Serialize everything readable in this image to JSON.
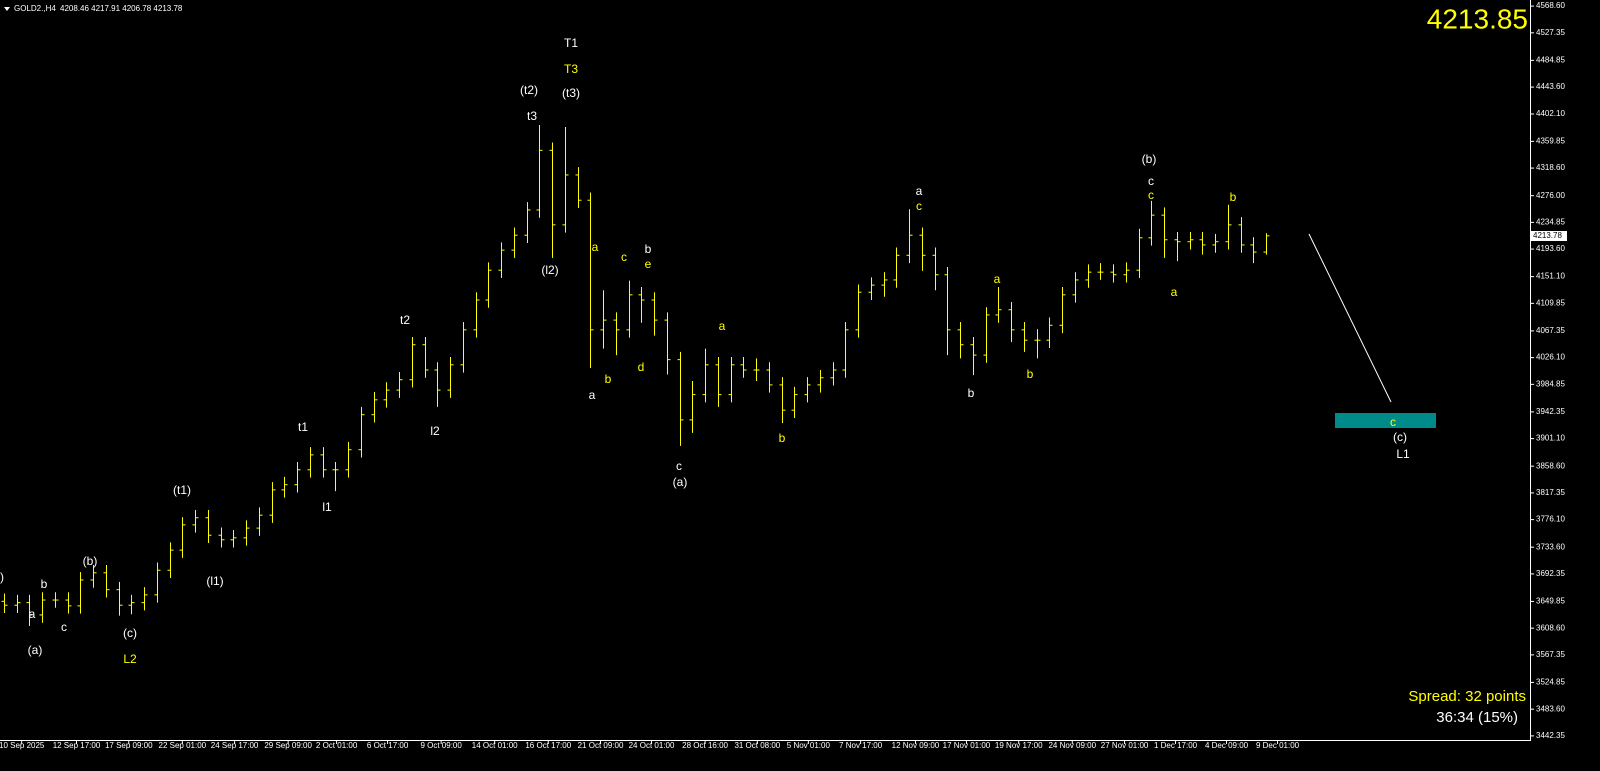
{
  "chart_data": {
    "type": "ohlc",
    "header": [
      "GOLD2.,H4",
      "4208.46 4217.91 4206.78 4213.78"
    ],
    "color": "#ffff00",
    "open": [
      3650,
      3644,
      3648,
      3629,
      3652,
      3652,
      3643,
      3683,
      3694,
      3668,
      3644,
      3648,
      3660,
      3698,
      3729,
      3768,
      3779,
      3752,
      3745,
      3748,
      3763,
      3783,
      3822,
      3830,
      3853,
      3876,
      3853,
      3853,
      3884,
      3938,
      3961,
      3976,
      3992,
      4046,
      4007,
      3976,
      4015,
      4069,
      4115,
      4161,
      4192,
      4215,
      4254,
      4346,
      4231,
      4308,
      4269,
      4069,
      4084,
      4069,
      4123,
      4115,
      4084,
      4023,
      3930,
      3969,
      4015,
      3969,
      4015,
      4007,
      4007,
      3984,
      3945,
      3969,
      3984,
      3995,
      4007,
      4069,
      4127,
      4138,
      4146,
      4184,
      4215,
      4184,
      4154,
      4069,
      4046,
      4030,
      4092,
      4100,
      4069,
      4053,
      4053,
      4076,
      4123,
      4146,
      4158,
      4158,
      4154,
      4161,
      4211,
      4246,
      4208,
      4205,
      4208,
      4200,
      4205,
      4231,
      4200,
      4189
    ],
    "high": [
      3662,
      3660,
      3660,
      3664,
      3664,
      3664,
      3695,
      3706,
      3706,
      3680,
      3660,
      3672,
      3710,
      3741,
      3780,
      3791,
      3791,
      3764,
      3760,
      3775,
      3795,
      3834,
      3842,
      3865,
      3888,
      3888,
      3865,
      3896,
      3950,
      3973,
      3988,
      4004,
      4058,
      4058,
      4019,
      4027,
      4081,
      4127,
      4173,
      4204,
      4227,
      4266,
      4385,
      4358,
      4382,
      4320,
      4281,
      4130,
      4096,
      4145,
      4135,
      4127,
      4096,
      4035,
      3990,
      4040,
      4027,
      4027,
      4027,
      4025,
      4019,
      3996,
      3981,
      3996,
      4007,
      4019,
      4081,
      4139,
      4150,
      4158,
      4196,
      4255,
      4227,
      4196,
      4166,
      4081,
      4058,
      4104,
      4135,
      4112,
      4081,
      4070,
      4088,
      4135,
      4158,
      4170,
      4172,
      4170,
      4173,
      4225,
      4268,
      4258,
      4220,
      4220,
      4220,
      4217,
      4262,
      4243,
      4212,
      4218
    ],
    "low": [
      3632,
      3632,
      3612,
      3617,
      3640,
      3631,
      3631,
      3671,
      3656,
      3628,
      3630,
      3636,
      3648,
      3686,
      3717,
      3756,
      3740,
      3733,
      3733,
      3736,
      3751,
      3771,
      3810,
      3818,
      3841,
      3841,
      3820,
      3841,
      3872,
      3926,
      3949,
      3964,
      3980,
      3995,
      3950,
      3964,
      4003,
      4057,
      4103,
      4149,
      4180,
      4203,
      4242,
      4180,
      4219,
      4257,
      4010,
      4040,
      4030,
      4057,
      4080,
      4060,
      4000,
      3890,
      3910,
      3957,
      3950,
      3957,
      3995,
      3990,
      3972,
      3925,
      3933,
      3957,
      3972,
      3983,
      3995,
      4057,
      4115,
      4120,
      4134,
      4172,
      4160,
      4130,
      4030,
      4025,
      3999,
      4018,
      4080,
      4050,
      4035,
      4025,
      4041,
      4064,
      4111,
      4134,
      4146,
      4142,
      4142,
      4149,
      4199,
      4180,
      4175,
      4193,
      4185,
      4188,
      4193,
      4188,
      4172,
      4185
    ],
    "close": [
      3644,
      3648,
      3629,
      3652,
      3652,
      3643,
      3683,
      3694,
      3668,
      3644,
      3648,
      3660,
      3698,
      3729,
      3768,
      3779,
      3752,
      3745,
      3748,
      3763,
      3783,
      3822,
      3830,
      3853,
      3876,
      3853,
      3853,
      3884,
      3938,
      3961,
      3976,
      3992,
      4046,
      4007,
      3976,
      4015,
      4069,
      4115,
      4161,
      4192,
      4215,
      4254,
      4346,
      4231,
      4308,
      4269,
      4069,
      4084,
      4069,
      4123,
      4115,
      4084,
      4023,
      3930,
      3969,
      4015,
      3969,
      4015,
      4007,
      4007,
      3984,
      3945,
      3969,
      3984,
      3995,
      4007,
      4069,
      4127,
      4138,
      4146,
      4184,
      4215,
      4184,
      4154,
      4069,
      4046,
      4030,
      4092,
      4100,
      4069,
      4053,
      4053,
      4076,
      4123,
      4146,
      4158,
      4158,
      4154,
      4161,
      4211,
      4246,
      4208,
      4205,
      4208,
      4200,
      4205,
      4231,
      4200,
      4189,
      4214
    ],
    "xlim": [
      -0.3,
      119.7
    ],
    "xticks": [
      {
        "value": 1.4,
        "label": "10 Sep 2025"
      },
      {
        "value": 5.7,
        "label": "12 Sep 17:00"
      },
      {
        "value": 9.8,
        "label": "17 Sep 09:00"
      },
      {
        "value": 14.0,
        "label": "22 Sep 01:00"
      },
      {
        "value": 18.1,
        "label": "24 Sep 17:00"
      },
      {
        "value": 22.3,
        "label": "29 Sep 09:00"
      },
      {
        "value": 26.1,
        "label": "2 Oct 01:00"
      },
      {
        "value": 30.1,
        "label": "6 Oct 17:00"
      },
      {
        "value": 34.3,
        "label": "9 Oct 09:00"
      },
      {
        "value": 38.5,
        "label": "14 Oct 01:00"
      },
      {
        "value": 42.7,
        "label": "16 Oct 17:00"
      },
      {
        "value": 46.8,
        "label": "21 Oct 09:00"
      },
      {
        "value": 50.8,
        "label": "24 Oct 01:00"
      },
      {
        "value": 55.0,
        "label": "28 Oct 16:00"
      },
      {
        "value": 59.1,
        "label": "31 Oct 08:00"
      },
      {
        "value": 63.1,
        "label": "5 Nov 01:00"
      },
      {
        "value": 67.2,
        "label": "7 Nov 17:00"
      },
      {
        "value": 71.5,
        "label": "12 Nov 09:00"
      },
      {
        "value": 75.5,
        "label": "17 Nov 01:00"
      },
      {
        "value": 79.6,
        "label": "19 Nov 17:00"
      },
      {
        "value": 83.8,
        "label": "24 Nov 09:00"
      },
      {
        "value": 87.9,
        "label": "27 Nov 01:00"
      },
      {
        "value": 91.9,
        "label": "1 Dec 17:00"
      },
      {
        "value": 95.9,
        "label": "4 Dec 09:00"
      },
      {
        "value": 99.9,
        "label": "9 Dec 01:00"
      }
    ],
    "ylim": [
      3436,
      4578
    ],
    "yticks": [
      {
        "value": 4568.6,
        "label": "4568.60"
      },
      {
        "value": 4527.35,
        "label": "4527.35"
      },
      {
        "value": 4484.85,
        "label": "4484.85"
      },
      {
        "value": 4443.6,
        "label": "4443.60"
      },
      {
        "value": 4402.1,
        "label": "4402.10"
      },
      {
        "value": 4359.85,
        "label": "4359.85"
      },
      {
        "value": 4318.6,
        "label": "4318.60"
      },
      {
        "value": 4276,
        "label": "4276.00"
      },
      {
        "value": 4234.85,
        "label": "4234.85"
      },
      {
        "value": 4193.6,
        "label": "4193.60"
      },
      {
        "value": 4151.1,
        "label": "4151.10"
      },
      {
        "value": 4109.85,
        "label": "4109.85"
      },
      {
        "value": 4067.35,
        "label": "4067.35"
      },
      {
        "value": 4026.1,
        "label": "4026.10"
      },
      {
        "value": 3984.85,
        "label": "3984.85"
      },
      {
        "value": 3942.35,
        "label": "3942.35"
      },
      {
        "value": 3901.1,
        "label": "3901.10"
      },
      {
        "value": 3858.6,
        "label": "3858.60"
      },
      {
        "value": 3817.35,
        "label": "3817.35"
      },
      {
        "value": 3776.1,
        "label": "3776.10"
      },
      {
        "value": 3733.6,
        "label": "3733.60"
      },
      {
        "value": 3692.35,
        "label": "3692.35"
      },
      {
        "value": 3649.85,
        "label": "3649.85"
      },
      {
        "value": 3608.6,
        "label": "3608.60"
      },
      {
        "value": 3567.35,
        "label": "3567.35"
      },
      {
        "value": 3524.85,
        "label": "3524.85"
      },
      {
        "value": 3483.6,
        "label": "3483.60"
      },
      {
        "value": 3442.35,
        "label": "3442.35"
      }
    ],
    "price_marker": {
      "value": 4213.78,
      "label": "4213.78"
    },
    "bid": 4213.85,
    "spread": "Spread: 32 points",
    "timer": "36:34 (15%)",
    "annotations": [
      {
        "text": ")",
        "color": "#ffffff"
      },
      {
        "text": "a",
        "color": "#ffffff"
      },
      {
        "text": "(a)",
        "color": "#ffffff"
      },
      {
        "text": "b",
        "color": "#ffffff"
      },
      {
        "text": "c",
        "color": "#ffffff"
      },
      {
        "text": "(b)",
        "color": "#ffffff"
      },
      {
        "text": "(c)",
        "color": "#ffffff"
      },
      {
        "text": "L2",
        "color": "#ffff00"
      },
      {
        "text": "(t1)",
        "color": "#ffffff"
      },
      {
        "text": "(l1)",
        "color": "#ffffff"
      },
      {
        "text": "t1",
        "color": "#ffffff"
      },
      {
        "text": "l1",
        "color": "#ffffff"
      },
      {
        "text": "t2",
        "color": "#ffffff"
      },
      {
        "text": "l2",
        "color": "#ffffff"
      },
      {
        "text": "(t2)",
        "color": "#ffffff"
      },
      {
        "text": "t3",
        "color": "#ffffff"
      },
      {
        "text": "T1",
        "color": "#ffffff"
      },
      {
        "text": "T3",
        "color": "#ffff00"
      },
      {
        "text": "(t3)",
        "color": "#ffffff"
      },
      {
        "text": "(l2)",
        "color": "#ffffff"
      },
      {
        "text": "a",
        "color": "#ffff00"
      },
      {
        "text": "b",
        "color": "#ffff00"
      },
      {
        "text": "a",
        "color": "#ffffff"
      },
      {
        "text": "c",
        "color": "#ffff00"
      },
      {
        "text": "b",
        "color": "#ffffff"
      },
      {
        "text": "e",
        "color": "#ffff00"
      },
      {
        "text": "d",
        "color": "#ffff00"
      },
      {
        "text": "c",
        "color": "#ffffff"
      },
      {
        "text": "(a)",
        "color": "#ffffff"
      },
      {
        "text": "a",
        "color": "#ffff00"
      },
      {
        "text": "b",
        "color": "#ffff00"
      },
      {
        "text": "a",
        "color": "#ffffff"
      },
      {
        "text": "c",
        "color": "#ffff00"
      },
      {
        "text": "b",
        "color": "#ffffff"
      },
      {
        "text": "a",
        "color": "#ffff00"
      },
      {
        "text": "b",
        "color": "#ffff00"
      },
      {
        "text": "(b)",
        "color": "#ffffff"
      },
      {
        "text": "c",
        "color": "#ffffff"
      },
      {
        "text": "c",
        "color": "#ffff00"
      },
      {
        "text": "a",
        "color": "#ffff00"
      },
      {
        "text": "b",
        "color": "#ffff00"
      },
      {
        "text": "c",
        "color": "#ffff00"
      },
      {
        "text": "(c)",
        "color": "#ffffff"
      },
      {
        "text": "L1",
        "color": "#ffffff"
      }
    ]
  }
}
